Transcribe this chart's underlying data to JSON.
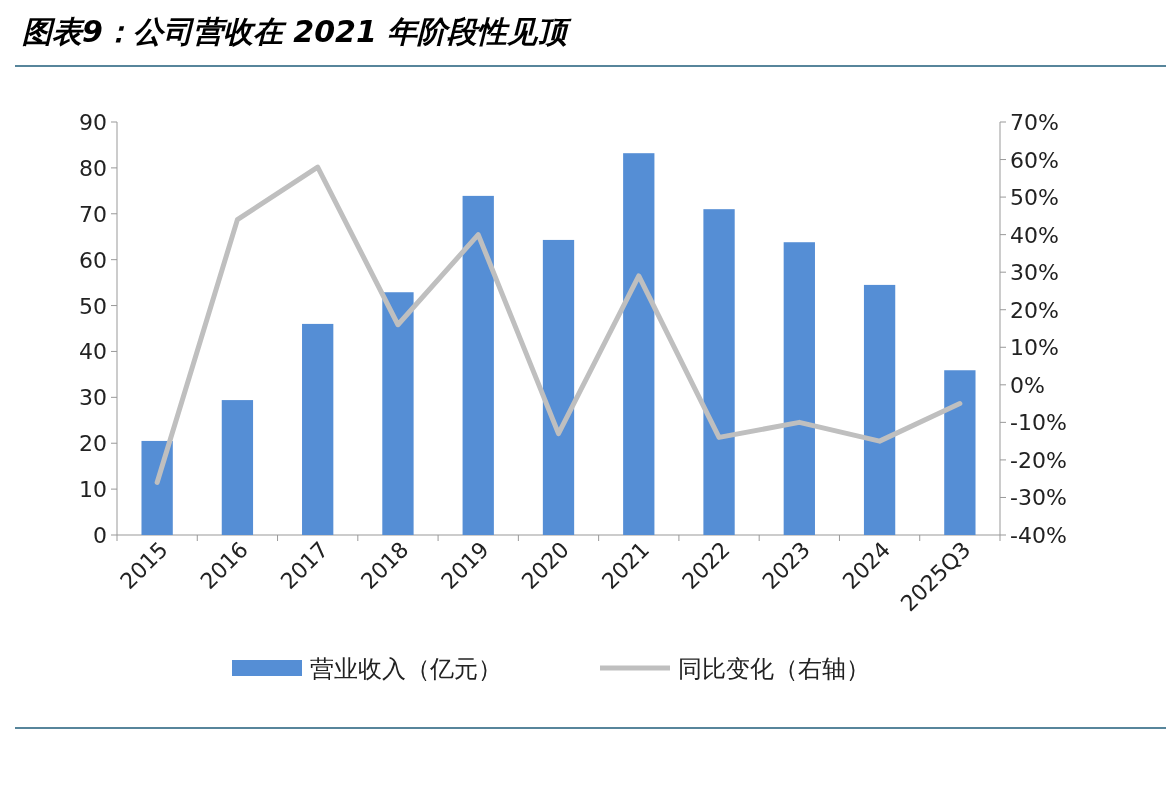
{
  "chart_data": {
    "type": "bar",
    "title": "图表9：公司营收在 2021 年阶段性见顶",
    "categories": [
      "2015",
      "2016",
      "2017",
      "2018",
      "2019",
      "2020",
      "2021",
      "2022",
      "2023",
      "2024",
      "2025Q3"
    ],
    "series": [
      {
        "name": "营业收入（亿元）",
        "color": "#558ed5",
        "values": [
          20.5,
          29.4,
          46,
          52.9,
          73.9,
          64.3,
          83.2,
          71,
          63.8,
          54.5,
          35.9
        ]
      },
      {
        "name": "同比变化（右轴）",
        "type": "line",
        "axis": "y2",
        "color": "#bfbfbf",
        "values": [
          -26,
          44,
          58,
          16,
          40,
          -13,
          29,
          -14,
          -10,
          -15,
          -5
        ]
      }
    ],
    "ylim": [
      0,
      90
    ],
    "yticks": [
      0,
      10,
      20,
      30,
      40,
      50,
      60,
      70,
      80,
      90
    ],
    "y2lim": [
      -40,
      70
    ],
    "y2ticks": [
      {
        "value": -40,
        "label": "-40%"
      },
      {
        "value": -30,
        "label": "-30%"
      },
      {
        "value": -20,
        "label": "-20%"
      },
      {
        "value": -10,
        "label": "-10%"
      },
      {
        "value": 0,
        "label": "0%"
      },
      {
        "value": 10,
        "label": "10%"
      },
      {
        "value": 20,
        "label": "20%"
      },
      {
        "value": 30,
        "label": "30%"
      },
      {
        "value": 40,
        "label": "40%"
      },
      {
        "value": 50,
        "label": "50%"
      },
      {
        "value": 60,
        "label": "60%"
      },
      {
        "value": 70,
        "label": "70%"
      }
    ],
    "grid": false,
    "legend": "bottom"
  }
}
